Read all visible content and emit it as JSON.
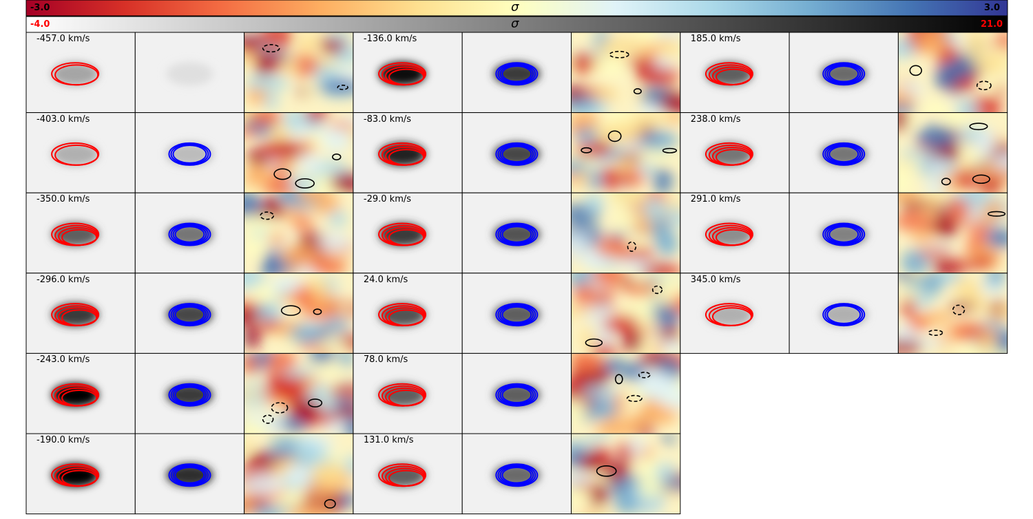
{
  "colorbars": {
    "residual": {
      "min_label": "-3.0",
      "max_label": "3.0",
      "symbol": "σ",
      "min_color": "#000000",
      "max_color": "#000000"
    },
    "intensity": {
      "min_label": "-4.0",
      "max_label": "21.0",
      "symbol": "σ",
      "min_color": "#ff0000",
      "max_color": "#ff0000"
    }
  },
  "contour_colors": {
    "data": "#ff0000",
    "model": "#0000ff",
    "residual": "#000000"
  },
  "columns": [
    {
      "channels": [
        {
          "velocity": "-457.0 km/s",
          "data_peak": 0.3,
          "model_peak": 0.05,
          "data_levels": 2,
          "model_levels": 0
        },
        {
          "velocity": "-403.0 km/s",
          "data_peak": 0.25,
          "model_peak": 0.2,
          "data_levels": 2,
          "model_levels": 3
        },
        {
          "velocity": "-350.0 km/s",
          "data_peak": 0.6,
          "model_peak": 0.5,
          "data_levels": 4,
          "model_levels": 4
        },
        {
          "velocity": "-296.0 km/s",
          "data_peak": 0.75,
          "model_peak": 0.7,
          "data_levels": 4,
          "model_levels": 4
        },
        {
          "velocity": "-243.0 km/s",
          "data_peak": 1.0,
          "model_peak": 0.75,
          "data_levels": 4,
          "model_levels": 4
        },
        {
          "velocity": "-190.0 km/s",
          "data_peak": 1.0,
          "model_peak": 0.8,
          "data_levels": 4,
          "model_levels": 4
        }
      ]
    },
    {
      "channels": [
        {
          "velocity": "-136.0 km/s",
          "data_peak": 0.95,
          "model_peak": 0.75,
          "data_levels": 4,
          "model_levels": 4
        },
        {
          "velocity": "-83.0 km/s",
          "data_peak": 0.85,
          "model_peak": 0.7,
          "data_levels": 4,
          "model_levels": 4
        },
        {
          "velocity": "-29.0 km/s",
          "data_peak": 0.75,
          "model_peak": 0.65,
          "data_levels": 4,
          "model_levels": 4
        },
        {
          "velocity": "24.0 km/s",
          "data_peak": 0.65,
          "model_peak": 0.6,
          "data_levels": 4,
          "model_levels": 4
        },
        {
          "velocity": "78.0 km/s",
          "data_peak": 0.6,
          "model_peak": 0.6,
          "data_levels": 4,
          "model_levels": 4
        },
        {
          "velocity": "131.0 km/s",
          "data_peak": 0.6,
          "model_peak": 0.55,
          "data_levels": 4,
          "model_levels": 4
        }
      ]
    },
    {
      "channels": [
        {
          "velocity": "185.0 km/s",
          "data_peak": 0.6,
          "model_peak": 0.55,
          "data_levels": 4,
          "model_levels": 4
        },
        {
          "velocity": "238.0 km/s",
          "data_peak": 0.5,
          "model_peak": 0.5,
          "data_levels": 4,
          "model_levels": 4
        },
        {
          "velocity": "291.0 km/s",
          "data_peak": 0.4,
          "model_peak": 0.45,
          "data_levels": 4,
          "model_levels": 4
        },
        {
          "velocity": "345.0 km/s",
          "data_peak": 0.25,
          "model_peak": 0.25,
          "data_levels": 3,
          "model_levels": 3
        }
      ]
    }
  ]
}
